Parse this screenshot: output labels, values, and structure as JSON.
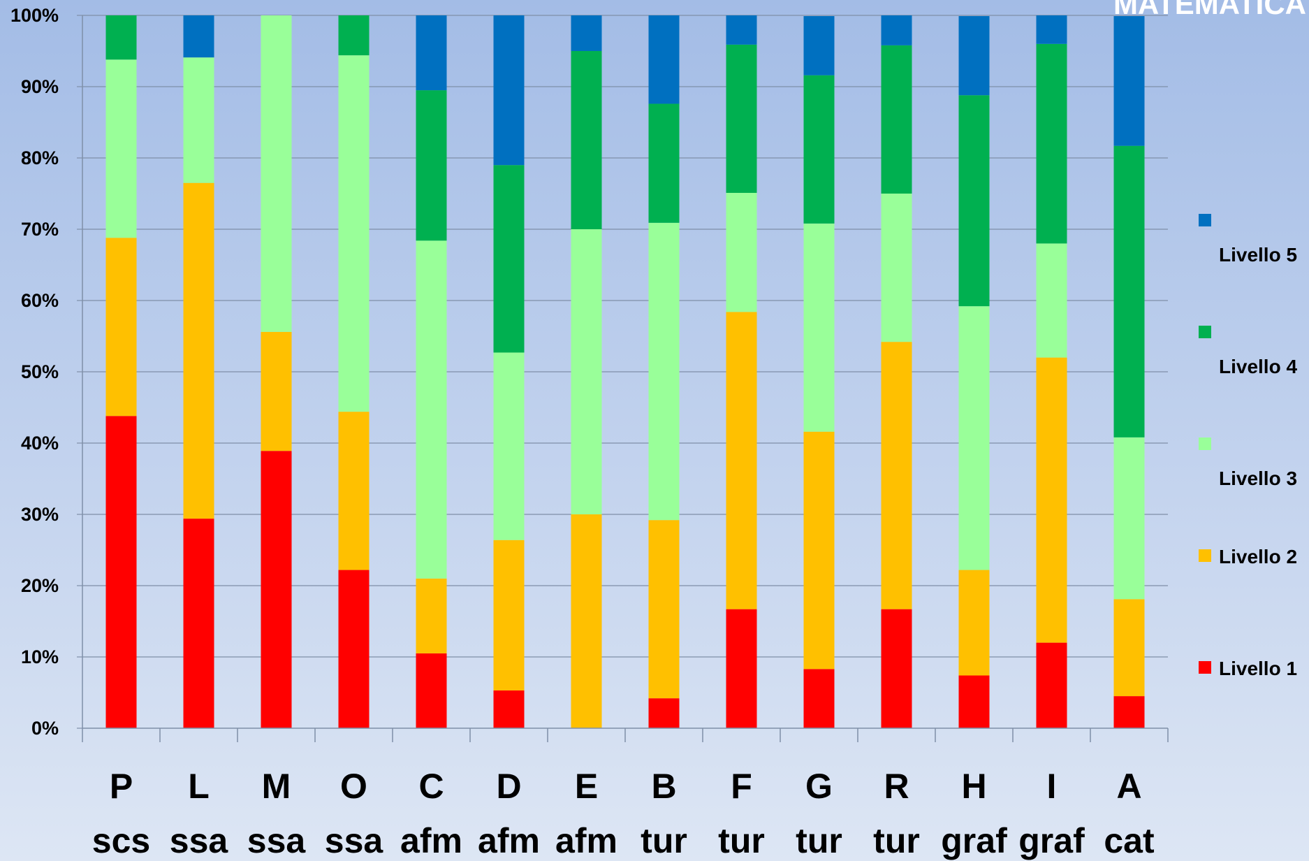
{
  "title": "MATEMATICA",
  "chart_data": {
    "type": "bar",
    "stacked": true,
    "percent_stacked": true,
    "title": "MATEMATICA",
    "categories": [
      {
        "line1": "P",
        "line2": "scs"
      },
      {
        "line1": "L",
        "line2": "ssa"
      },
      {
        "line1": "M",
        "line2": "ssa"
      },
      {
        "line1": "O",
        "line2": "ssa"
      },
      {
        "line1": "C",
        "line2": "afm"
      },
      {
        "line1": "D",
        "line2": "afm"
      },
      {
        "line1": "E",
        "line2": "afm"
      },
      {
        "line1": "B",
        "line2": "tur"
      },
      {
        "line1": "F",
        "line2": "tur"
      },
      {
        "line1": "G",
        "line2": "tur"
      },
      {
        "line1": "R",
        "line2": "tur"
      },
      {
        "line1": "H",
        "line2": "graf"
      },
      {
        "line1": "I",
        "line2": "graf"
      },
      {
        "line1": "A",
        "line2": "cat"
      }
    ],
    "series": [
      {
        "name": "Livello 1",
        "color": "#ff0000",
        "values": [
          43.8,
          29.4,
          38.9,
          22.2,
          10.5,
          5.3,
          0,
          4.2,
          16.7,
          8.3,
          16.7,
          7.4,
          12.0,
          4.5
        ]
      },
      {
        "name": "Livello 2",
        "color": "#ffc000",
        "values": [
          25.0,
          47.1,
          16.7,
          22.2,
          10.5,
          21.1,
          30.0,
          25.0,
          41.7,
          33.3,
          37.5,
          14.8,
          40.0,
          13.6
        ]
      },
      {
        "name": "Livello 3",
        "color": "#99ff99",
        "values": [
          25.0,
          17.6,
          44.4,
          50.0,
          47.4,
          26.3,
          40.0,
          41.7,
          16.7,
          29.2,
          20.8,
          37.0,
          16.0,
          22.7
        ]
      },
      {
        "name": "Livello 4",
        "color": "#00b050",
        "values": [
          6.2,
          0,
          0,
          5.6,
          21.1,
          26.3,
          25.0,
          16.7,
          20.8,
          20.8,
          20.8,
          29.6,
          28.0,
          40.9
        ]
      },
      {
        "name": "Livello 5",
        "color": "#0070c0",
        "values": [
          0,
          5.9,
          0,
          0,
          10.5,
          21.0,
          5.0,
          12.5,
          4.2,
          8.3,
          4.2,
          11.1,
          4.0,
          18.2
        ]
      }
    ],
    "y_ticks": [
      "0%",
      "10%",
      "20%",
      "30%",
      "40%",
      "50%",
      "60%",
      "70%",
      "80%",
      "90%",
      "100%"
    ],
    "ylim": [
      0,
      100
    ],
    "grid": true,
    "legend_position": "right"
  }
}
